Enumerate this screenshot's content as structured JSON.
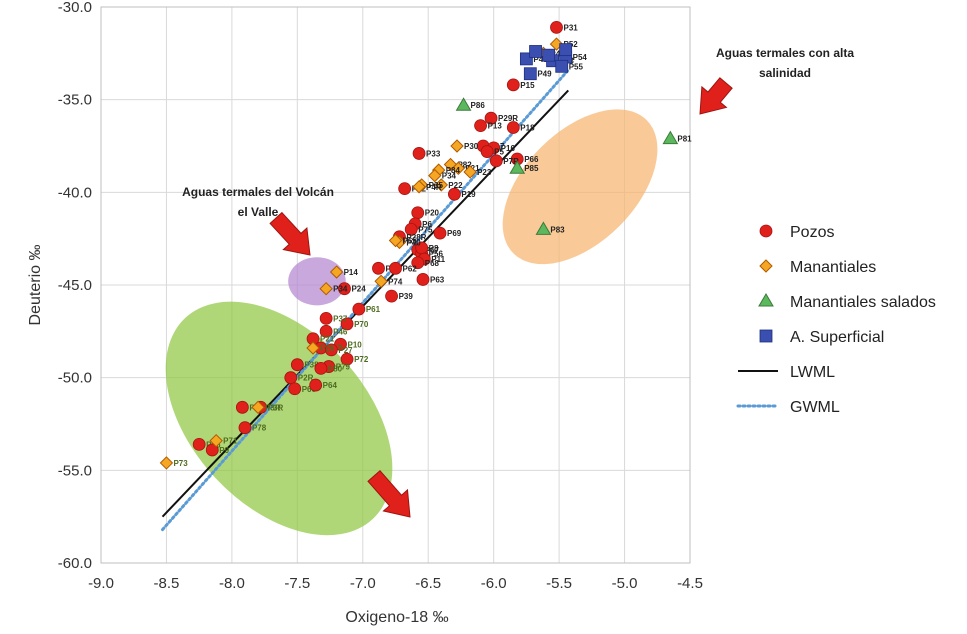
{
  "chart_data": {
    "type": "scatter",
    "title": "",
    "xlabel": "Oxigeno-18 ‰",
    "ylabel": "Deuterio ‰",
    "xlim": [
      -9.0,
      -4.5
    ],
    "ylim": [
      -60.0,
      -30.0
    ],
    "x_ticks": [
      "-9.0",
      "-8.5",
      "-8.0",
      "-7.5",
      "-7.0",
      "-6.5",
      "-6.0",
      "-5.5",
      "-5.0",
      "-4.5"
    ],
    "y_ticks": [
      "-30.0",
      "-35.0",
      "-40.0",
      "-45.0",
      "-50.0",
      "-55.0",
      "-60.0"
    ],
    "grid": true,
    "legend_position": "right",
    "series": [
      {
        "name": "Pozos",
        "marker": "circle",
        "color": "#e0201b",
        "points": [
          {
            "label": "P31",
            "x": -5.52,
            "y": -31.1
          },
          {
            "label": "P15",
            "x": -5.85,
            "y": -34.2
          },
          {
            "label": "P29R",
            "x": -6.02,
            "y": -36.0
          },
          {
            "label": "P13",
            "x": -6.1,
            "y": -36.4
          },
          {
            "label": "P18",
            "x": -5.85,
            "y": -36.5
          },
          {
            "label": "P17",
            "x": -6.08,
            "y": -37.5
          },
          {
            "label": "P16",
            "x": -6.0,
            "y": -37.6
          },
          {
            "label": "P33",
            "x": -6.57,
            "y": -37.9
          },
          {
            "label": "P5",
            "x": -6.05,
            "y": -37.8
          },
          {
            "label": "P66",
            "x": -5.82,
            "y": -38.2
          },
          {
            "label": "P7R",
            "x": -5.98,
            "y": -38.3
          },
          {
            "label": "P12",
            "x": -6.68,
            "y": -39.8
          },
          {
            "label": "P19",
            "x": -6.3,
            "y": -40.1
          },
          {
            "label": "P20",
            "x": -6.58,
            "y": -41.1
          },
          {
            "label": "P6",
            "x": -6.6,
            "y": -41.7
          },
          {
            "label": "P75",
            "x": -6.63,
            "y": -42.0
          },
          {
            "label": "P69",
            "x": -6.41,
            "y": -42.2
          },
          {
            "label": "P28R",
            "x": -6.72,
            "y": -42.4
          },
          {
            "label": "P67",
            "x": -6.58,
            "y": -43.1
          },
          {
            "label": "P56",
            "x": -6.55,
            "y": -43.3
          },
          {
            "label": "P8",
            "x": -6.55,
            "y": -43.0
          },
          {
            "label": "P11",
            "x": -6.53,
            "y": -43.6
          },
          {
            "label": "P68",
            "x": -6.58,
            "y": -43.8
          },
          {
            "label": "P44",
            "x": -6.88,
            "y": -44.1
          },
          {
            "label": "P62",
            "x": -6.75,
            "y": -44.1
          },
          {
            "label": "P63",
            "x": -6.54,
            "y": -44.7
          },
          {
            "label": "P24",
            "x": -7.14,
            "y": -45.2
          },
          {
            "label": "P39",
            "x": -6.78,
            "y": -45.6
          },
          {
            "label": "P61",
            "x": -7.03,
            "y": -46.3
          },
          {
            "label": "P70",
            "x": -7.12,
            "y": -47.1
          },
          {
            "label": "P37",
            "x": -7.28,
            "y": -46.8
          },
          {
            "label": "P46",
            "x": -7.28,
            "y": -47.5
          },
          {
            "label": "P21",
            "x": -7.38,
            "y": -47.9
          },
          {
            "label": "P10",
            "x": -7.17,
            "y": -48.2
          },
          {
            "label": "P57",
            "x": -7.32,
            "y": -48.4
          },
          {
            "label": "P27",
            "x": -7.24,
            "y": -48.5
          },
          {
            "label": "P72",
            "x": -7.12,
            "y": -49.0
          },
          {
            "label": "P38",
            "x": -7.5,
            "y": -49.3
          },
          {
            "label": "P79",
            "x": -7.26,
            "y": -49.4
          },
          {
            "label": "P80",
            "x": -7.32,
            "y": -49.5
          },
          {
            "label": "P2R",
            "x": -7.55,
            "y": -50.0
          },
          {
            "label": "P60",
            "x": -7.52,
            "y": -50.6
          },
          {
            "label": "P64",
            "x": -7.36,
            "y": -50.4
          },
          {
            "label": "P36",
            "x": -7.92,
            "y": -51.6
          },
          {
            "label": "P3R",
            "x": -7.78,
            "y": -51.6
          },
          {
            "label": "P78",
            "x": -7.9,
            "y": -52.7
          },
          {
            "label": "P45",
            "x": -8.25,
            "y": -53.6
          },
          {
            "label": "P9",
            "x": -8.15,
            "y": -53.9
          }
        ]
      },
      {
        "name": "Manantiales",
        "marker": "diamond",
        "color": "#f5a623",
        "points": [
          {
            "label": "P52",
            "x": -5.52,
            "y": -32.0
          },
          {
            "label": "P42",
            "x": -5.62,
            "y": -32.5
          },
          {
            "label": "P30",
            "x": -6.28,
            "y": -37.5
          },
          {
            "label": "P82",
            "x": -6.33,
            "y": -38.5
          },
          {
            "label": "P21",
            "x": -6.27,
            "y": -38.7
          },
          {
            "label": "P84",
            "x": -6.42,
            "y": -38.8
          },
          {
            "label": "P23",
            "x": -6.18,
            "y": -38.9
          },
          {
            "label": "P34",
            "x": -6.45,
            "y": -39.1
          },
          {
            "label": "P22",
            "x": -6.4,
            "y": -39.6
          },
          {
            "label": "P35",
            "x": -6.55,
            "y": -39.6
          },
          {
            "label": "P4R",
            "x": -6.57,
            "y": -39.7
          },
          {
            "label": "P40",
            "x": -6.72,
            "y": -42.7
          },
          {
            "label": "P65",
            "x": -6.75,
            "y": -42.6
          },
          {
            "label": "P14",
            "x": -7.2,
            "y": -44.3
          },
          {
            "label": "P74",
            "x": -6.86,
            "y": -44.8
          },
          {
            "label": "P34",
            "x": -7.28,
            "y": -45.2
          },
          {
            "label": "P26",
            "x": -7.38,
            "y": -48.4
          },
          {
            "label": "P3R",
            "x": -7.8,
            "y": -51.6
          },
          {
            "label": "P71",
            "x": -8.12,
            "y": -53.4
          },
          {
            "label": "P73",
            "x": -8.5,
            "y": -54.6
          }
        ]
      },
      {
        "name": "Manantiales salados",
        "marker": "triangle",
        "color": "#5cb85c",
        "points": [
          {
            "label": "P86",
            "x": -6.23,
            "y": -35.3
          },
          {
            "label": "P85",
            "x": -5.82,
            "y": -38.7
          },
          {
            "label": "P81",
            "x": -4.65,
            "y": -37.1
          },
          {
            "label": "P83",
            "x": -5.62,
            "y": -42.0
          }
        ]
      },
      {
        "name": "A. Superficial",
        "marker": "square",
        "color": "#3a4fb0",
        "points": [
          {
            "label": "P48",
            "x": -5.75,
            "y": -32.8
          },
          {
            "label": "P53",
            "x": -5.55,
            "y": -32.9
          },
          {
            "label": "P54",
            "x": -5.45,
            "y": -32.7
          },
          {
            "label": "P55",
            "x": -5.48,
            "y": -33.2
          },
          {
            "label": "P49",
            "x": -5.72,
            "y": -33.6
          },
          {
            "label": "",
            "x": -5.45,
            "y": -32.3
          },
          {
            "label": "",
            "x": -5.68,
            "y": -32.4
          },
          {
            "label": "",
            "x": -5.58,
            "y": -32.6
          }
        ]
      }
    ],
    "lines": [
      {
        "name": "LWML",
        "style": "solid",
        "color": "#111111",
        "points": [
          [
            -8.53,
            -57.5
          ],
          [
            -5.43,
            -34.5
          ]
        ]
      },
      {
        "name": "GWML",
        "style": "dotted",
        "color": "#5b9bd5",
        "points": [
          [
            -8.53,
            -58.2
          ],
          [
            -5.43,
            -33.4
          ]
        ]
      }
    ],
    "ellipses": [
      {
        "name": "green-zone",
        "cx": -7.64,
        "cy": -52.2,
        "rx_deg": 1.05,
        "ry": 4.7,
        "angle": 47,
        "color": "#8dc63f"
      },
      {
        "name": "purple-zone",
        "cx": -7.35,
        "cy": -44.8,
        "rx_deg": 0.22,
        "ry": 1.3,
        "angle": 0,
        "color": "#b284cf"
      },
      {
        "name": "orange-zone",
        "cx": -5.34,
        "cy": -39.7,
        "rx_deg": 0.72,
        "ry": 3.0,
        "angle": -45,
        "color": "#f7b36c"
      }
    ],
    "annotations": [
      {
        "name": "annot-alta-salinidad",
        "lines": [
          "Aguas termales con alta",
          "salinidad"
        ]
      },
      {
        "name": "annot-volcan-valle",
        "lines": [
          "Aguas termales del Volcán",
          "el Valle"
        ]
      }
    ],
    "legend": [
      {
        "label": "Pozos",
        "marker": "circle"
      },
      {
        "label": "Manantiales",
        "marker": "diamond"
      },
      {
        "label": "Manantiales salados",
        "marker": "triangle"
      },
      {
        "label": "A. Superficial",
        "marker": "square"
      },
      {
        "label": "LWML",
        "marker": "line-solid"
      },
      {
        "label": "GWML",
        "marker": "line-dotted"
      }
    ]
  }
}
